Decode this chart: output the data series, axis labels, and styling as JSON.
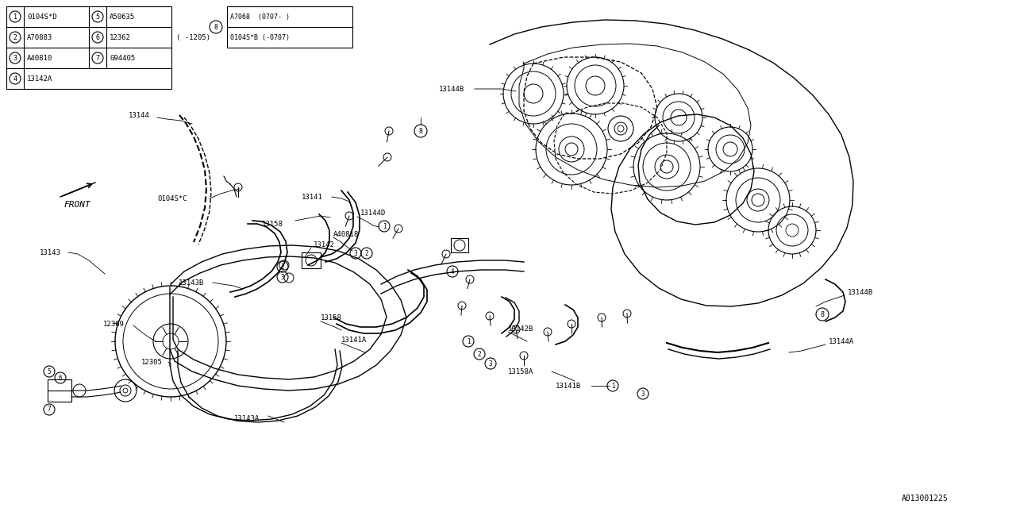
{
  "bg_color": "#ffffff",
  "line_color": "#000000",
  "fig_width": 12.8,
  "fig_height": 6.4,
  "dpi": 100,
  "diagram_id": "A013001225",
  "legend_left": [
    {
      "num": "1",
      "code": "0104S*D"
    },
    {
      "num": "2",
      "code": "A70883"
    },
    {
      "num": "3",
      "code": "A40810"
    },
    {
      "num": "4",
      "code": "13142A"
    }
  ],
  "legend_right": [
    {
      "num": "5",
      "code": "A50635"
    },
    {
      "num": "6",
      "code": "12362"
    },
    {
      "num": "7",
      "code": "G94405"
    }
  ],
  "legend_note": "( -1205)",
  "legend_special_num": "8",
  "legend_special_line1": "0104S*B (-0707)",
  "legend_special_line2": "A7068  (0707- )",
  "front_label": "FRONT"
}
